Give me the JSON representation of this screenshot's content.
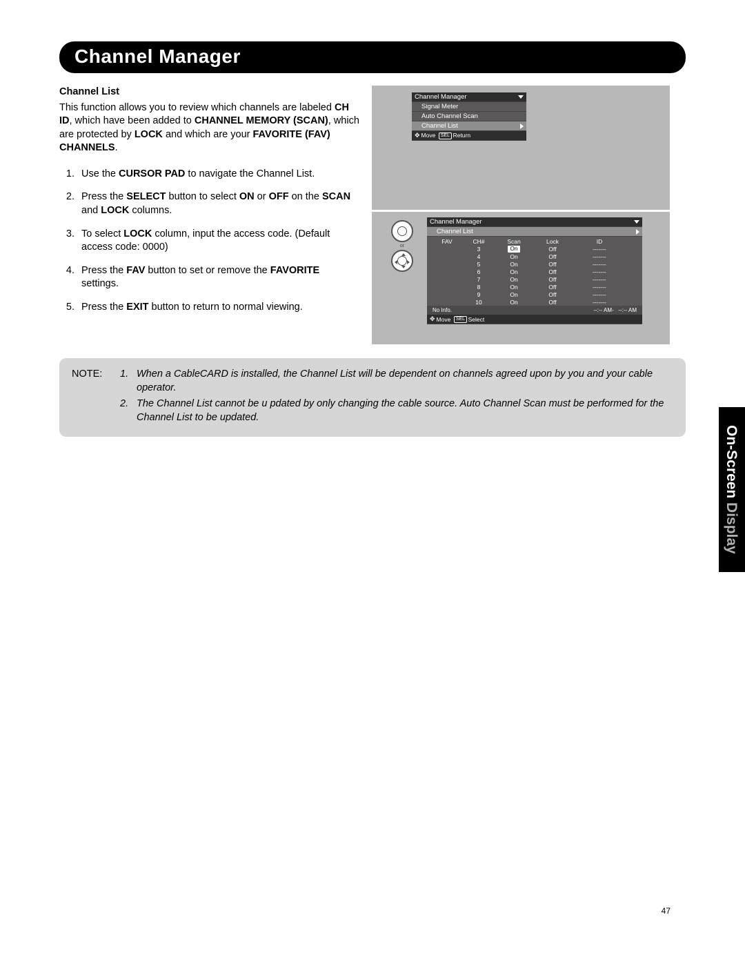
{
  "colors": {
    "page_bg": "#ffffff",
    "titlebar_bg": "#000000",
    "titlebar_text": "#ffffff",
    "screen_bg": "#b8b8b8",
    "osd_bg": "#5a5858",
    "osd_header_bg": "#2d2d2d",
    "osd_highlight_bg": "#8e8e8e",
    "note_bg": "#d6d6d6",
    "sidetab_bg": "#000000",
    "sidetab_grey": "#b0b0b0"
  },
  "page_number": "47",
  "title": "Channel Manager",
  "subhead": "Channel List",
  "intro": {
    "pre": "This function allows you to review which channels are labeled ",
    "b1": "CH ID",
    "mid1": ", which have been added to ",
    "b2": "CHANNEL MEMORY (SCAN)",
    "mid2": ", which are protected by ",
    "b3": "LOCK",
    "mid3": " and which are your ",
    "b4": "FAVORITE (FAV) CHANNELS",
    "end": "."
  },
  "steps": {
    "s1a": "Use the ",
    "s1b": "CURSOR PAD",
    "s1c": " to navigate the Channel List.",
    "s2a": "Press the ",
    "s2b": "SELECT",
    "s2c": " button to select ",
    "s2d": "ON",
    "s2e": " or ",
    "s2f": "OFF",
    "s2g": " on the ",
    "s2h": "SCAN",
    "s2i": " and ",
    "s2j": "LOCK",
    "s2k": " columns.",
    "s3a": "To select ",
    "s3b": "LOCK",
    "s3c": " column, input the access code. (Default access code: 0000)",
    "s4a": "Press the ",
    "s4b": "FAV",
    "s4c": " button to set or remove the ",
    "s4d": "FAVORITE",
    "s4e": " settings.",
    "s5a": "Press the ",
    "s5b": "EXIT",
    "s5c": " button to return to normal viewing."
  },
  "note": {
    "label": "NOTE:",
    "n1": "When a CableCARD is installed, the Channel List will be dependent on channels agreed upon by you and your cable operator.",
    "n2": "The Channel List cannot be u pdated by only changing the cable source.  Auto Channel Scan must be performed for the Channel List to be updated."
  },
  "sidetab": {
    "a": "On-Screen",
    "b": " Display"
  },
  "osd1": {
    "header": "Channel Manager",
    "items": [
      "Signal Meter",
      "Auto Channel Scan"
    ],
    "highlight": "Channel List",
    "footer_move": "Move",
    "footer_sel": "SEL",
    "footer_return": "Return"
  },
  "osd2": {
    "or_label": "or",
    "header": "Channel Manager",
    "sub": "Channel List",
    "cols": {
      "fav": "FAV",
      "ch": "CH#",
      "scan": "Scan",
      "lock": "Lock",
      "id": "ID"
    },
    "rows": [
      {
        "ch": "3",
        "scan": "On",
        "scan_hl": true,
        "lock": "Off",
        "id": "-------"
      },
      {
        "ch": "4",
        "scan": "On",
        "lock": "Off",
        "id": "-------"
      },
      {
        "ch": "5",
        "scan": "On",
        "lock": "Off",
        "id": "-------"
      },
      {
        "ch": "6",
        "scan": "On",
        "lock": "Off",
        "id": "-------"
      },
      {
        "ch": "7",
        "scan": "On",
        "lock": "Off",
        "id": "-------"
      },
      {
        "ch": "8",
        "scan": "On",
        "lock": "Off",
        "id": "-------"
      },
      {
        "ch": "9",
        "scan": "On",
        "lock": "Off",
        "id": "-------"
      },
      {
        "ch": "10",
        "scan": "On",
        "lock": "Off",
        "id": "-------"
      }
    ],
    "noinfo": "No Info.",
    "am_left": "--:-- AM-",
    "am_right": "--:-- AM",
    "footer_move": "Move",
    "footer_sel": "SEL",
    "footer_select": "Select"
  }
}
